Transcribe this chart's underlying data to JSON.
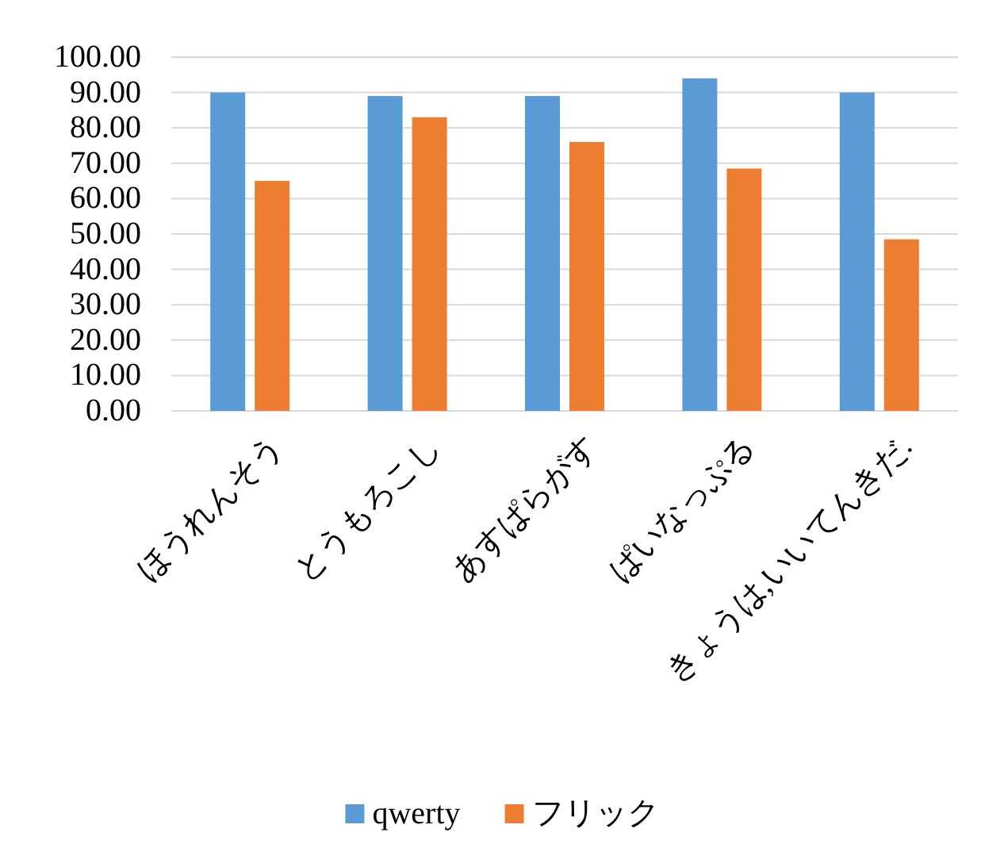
{
  "chart_data": {
    "type": "bar",
    "categories": [
      "ほうれんそう",
      "とうもろこし",
      "あすぱらがす",
      "ぱいなっぷる",
      "きょうは,いいてんきだ."
    ],
    "series": [
      {
        "name": "qwerty",
        "color": "#5b9bd5",
        "values": [
          90,
          89,
          89,
          94,
          90
        ]
      },
      {
        "name": "フリック",
        "color": "#ed7d31",
        "values": [
          65,
          83,
          76,
          68.5,
          48.5
        ]
      }
    ],
    "ylim": [
      0,
      100
    ],
    "yticks": [
      {
        "value": 0,
        "label": "0.00"
      },
      {
        "value": 10,
        "label": "10.00"
      },
      {
        "value": 20,
        "label": "20.00"
      },
      {
        "value": 30,
        "label": "30.00"
      },
      {
        "value": 40,
        "label": "40.00"
      },
      {
        "value": 50,
        "label": "50.00"
      },
      {
        "value": 60,
        "label": "60.00"
      },
      {
        "value": 70,
        "label": "70.00"
      },
      {
        "value": 80,
        "label": "80.00"
      },
      {
        "value": 90,
        "label": "90.00"
      },
      {
        "value": 100,
        "label": "100.00"
      }
    ],
    "grid": "y",
    "legend": "bottom"
  }
}
